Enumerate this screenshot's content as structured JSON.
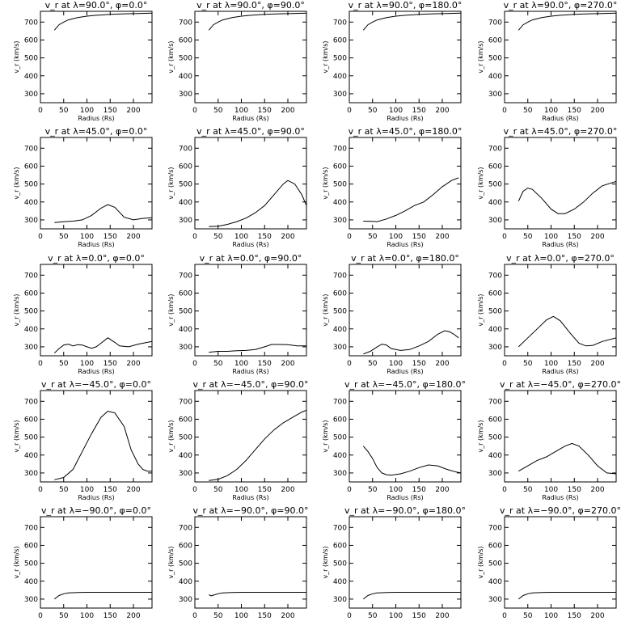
{
  "chart_data": {
    "type": "line",
    "layout": "5x4 grid of line plots",
    "xlabel": "Radius (Rs)",
    "ylabel": "v_r (km/s)",
    "xlim": [
      0,
      240
    ],
    "ylim": [
      250,
      760
    ],
    "xticks": [
      0,
      50,
      100,
      150,
      200
    ],
    "yticks": [
      300,
      400,
      500,
      600,
      700
    ],
    "grid": false,
    "panels": [
      {
        "title": "v_r at λ=90.0°, φ=0.0°",
        "x": [
          30,
          40,
          50,
          60,
          80,
          100,
          120,
          150,
          180,
          210,
          240
        ],
        "y": [
          655,
          685,
          700,
          712,
          725,
          733,
          738,
          743,
          746,
          748,
          750
        ]
      },
      {
        "title": "v_r at λ=90.0°, φ=90.0°",
        "x": [
          30,
          40,
          50,
          60,
          80,
          100,
          120,
          150,
          180,
          210,
          240
        ],
        "y": [
          655,
          685,
          700,
          712,
          725,
          733,
          738,
          743,
          746,
          748,
          750
        ]
      },
      {
        "title": "v_r at λ=90.0°, φ=180.0°",
        "x": [
          30,
          40,
          50,
          60,
          80,
          100,
          120,
          150,
          180,
          210,
          240
        ],
        "y": [
          655,
          685,
          700,
          712,
          725,
          733,
          738,
          743,
          746,
          748,
          750
        ]
      },
      {
        "title": "v_r at λ=90.0°, φ=270.0°",
        "x": [
          30,
          40,
          50,
          60,
          80,
          100,
          120,
          150,
          180,
          210,
          240
        ],
        "y": [
          655,
          685,
          700,
          712,
          725,
          733,
          738,
          743,
          746,
          748,
          750
        ]
      },
      {
        "title": "v_r at λ=45.0°, φ=0.0°",
        "x": [
          30,
          50,
          70,
          90,
          110,
          130,
          145,
          160,
          180,
          200,
          220,
          240
        ],
        "y": [
          285,
          290,
          293,
          300,
          325,
          365,
          385,
          370,
          315,
          300,
          308,
          312
        ]
      },
      {
        "title": "v_r at λ=45.0°, φ=90.0°",
        "x": [
          30,
          50,
          70,
          90,
          110,
          130,
          150,
          170,
          190,
          200,
          215,
          230,
          240
        ],
        "y": [
          262,
          265,
          275,
          290,
          310,
          340,
          380,
          440,
          500,
          520,
          500,
          440,
          380
        ]
      },
      {
        "title": "v_r at λ=45.0°, φ=180.0°",
        "x": [
          30,
          50,
          60,
          80,
          100,
          120,
          140,
          160,
          180,
          200,
          220,
          235
        ],
        "y": [
          293,
          292,
          290,
          305,
          325,
          350,
          380,
          400,
          440,
          485,
          520,
          535
        ]
      },
      {
        "title": "v_r at λ=45.0°, φ=270.0°",
        "x": [
          30,
          40,
          50,
          60,
          80,
          100,
          115,
          130,
          150,
          170,
          190,
          210,
          240
        ],
        "y": [
          405,
          460,
          478,
          470,
          420,
          360,
          335,
          335,
          360,
          400,
          450,
          490,
          515
        ]
      },
      {
        "title": "v_r at λ=0.0°, φ=0.0°",
        "x": [
          30,
          40,
          50,
          60,
          70,
          80,
          90,
          100,
          110,
          120,
          130,
          145,
          160,
          170,
          190,
          210,
          240
        ],
        "y": [
          265,
          290,
          310,
          315,
          305,
          312,
          310,
          300,
          292,
          300,
          320,
          350,
          325,
          305,
          300,
          315,
          330
        ]
      },
      {
        "title": "v_r at λ=0.0°, φ=90.0°",
        "x": [
          30,
          50,
          70,
          90,
          110,
          130,
          150,
          165,
          180,
          200,
          220,
          240
        ],
        "y": [
          270,
          275,
          275,
          278,
          280,
          285,
          300,
          313,
          313,
          312,
          305,
          305
        ]
      },
      {
        "title": "v_r at λ=0.0°, φ=180.0°",
        "x": [
          30,
          45,
          60,
          70,
          80,
          90,
          110,
          130,
          150,
          170,
          190,
          205,
          215,
          225,
          235
        ],
        "y": [
          260,
          275,
          300,
          315,
          310,
          290,
          280,
          285,
          305,
          330,
          370,
          390,
          385,
          370,
          350
        ]
      },
      {
        "title": "v_r at λ=0.0°, φ=270.0°",
        "x": [
          30,
          50,
          70,
          90,
          105,
          120,
          140,
          160,
          175,
          190,
          210,
          240
        ],
        "y": [
          300,
          350,
          400,
          450,
          470,
          445,
          380,
          320,
          305,
          308,
          330,
          350
        ]
      },
      {
        "title": "v_r at λ=−45.0°, φ=0.0°",
        "x": [
          30,
          50,
          70,
          90,
          110,
          130,
          145,
          160,
          180,
          195,
          210,
          220,
          230,
          240
        ],
        "y": [
          262,
          275,
          320,
          420,
          520,
          610,
          645,
          635,
          560,
          430,
          350,
          320,
          310,
          310
        ]
      },
      {
        "title": "v_r at λ=−45.0°, φ=90.0°",
        "x": [
          30,
          50,
          70,
          90,
          110,
          130,
          150,
          170,
          190,
          210,
          230,
          240
        ],
        "y": [
          258,
          265,
          285,
          320,
          370,
          430,
          490,
          540,
          580,
          610,
          640,
          650
        ]
      },
      {
        "title": "v_r at λ=−45.0°, φ=180.0°",
        "x": [
          30,
          40,
          50,
          60,
          70,
          80,
          90,
          110,
          130,
          150,
          170,
          190,
          210,
          230,
          240
        ],
        "y": [
          450,
          420,
          380,
          330,
          300,
          290,
          288,
          295,
          310,
          330,
          345,
          340,
          320,
          305,
          300
        ]
      },
      {
        "title": "v_r at λ=−45.0°, φ=270.0°",
        "x": [
          30,
          50,
          70,
          90,
          110,
          130,
          145,
          160,
          180,
          200,
          220,
          240
        ],
        "y": [
          310,
          340,
          370,
          390,
          420,
          450,
          465,
          450,
          400,
          340,
          300,
          295
        ]
      },
      {
        "title": "v_r at λ=−90.0°, φ=0.0°",
        "x": [
          30,
          40,
          50,
          60,
          80,
          100,
          150,
          200,
          240
        ],
        "y": [
          300,
          320,
          330,
          335,
          337,
          338,
          338,
          338,
          338
        ]
      },
      {
        "title": "v_r at λ=−90.0°, φ=90.0°",
        "x": [
          30,
          35,
          40,
          50,
          60,
          80,
          100,
          150,
          200,
          240
        ],
        "y": [
          325,
          318,
          322,
          330,
          335,
          337,
          338,
          338,
          338,
          338
        ]
      },
      {
        "title": "v_r at λ=−90.0°, φ=180.0°",
        "x": [
          30,
          40,
          50,
          60,
          80,
          100,
          150,
          200,
          240
        ],
        "y": [
          300,
          320,
          330,
          335,
          337,
          338,
          338,
          338,
          338
        ]
      },
      {
        "title": "v_r at λ=−90.0°, φ=270.0°",
        "x": [
          30,
          40,
          50,
          60,
          80,
          100,
          150,
          200,
          240
        ],
        "y": [
          300,
          320,
          330,
          335,
          337,
          338,
          338,
          338,
          338
        ]
      }
    ]
  }
}
